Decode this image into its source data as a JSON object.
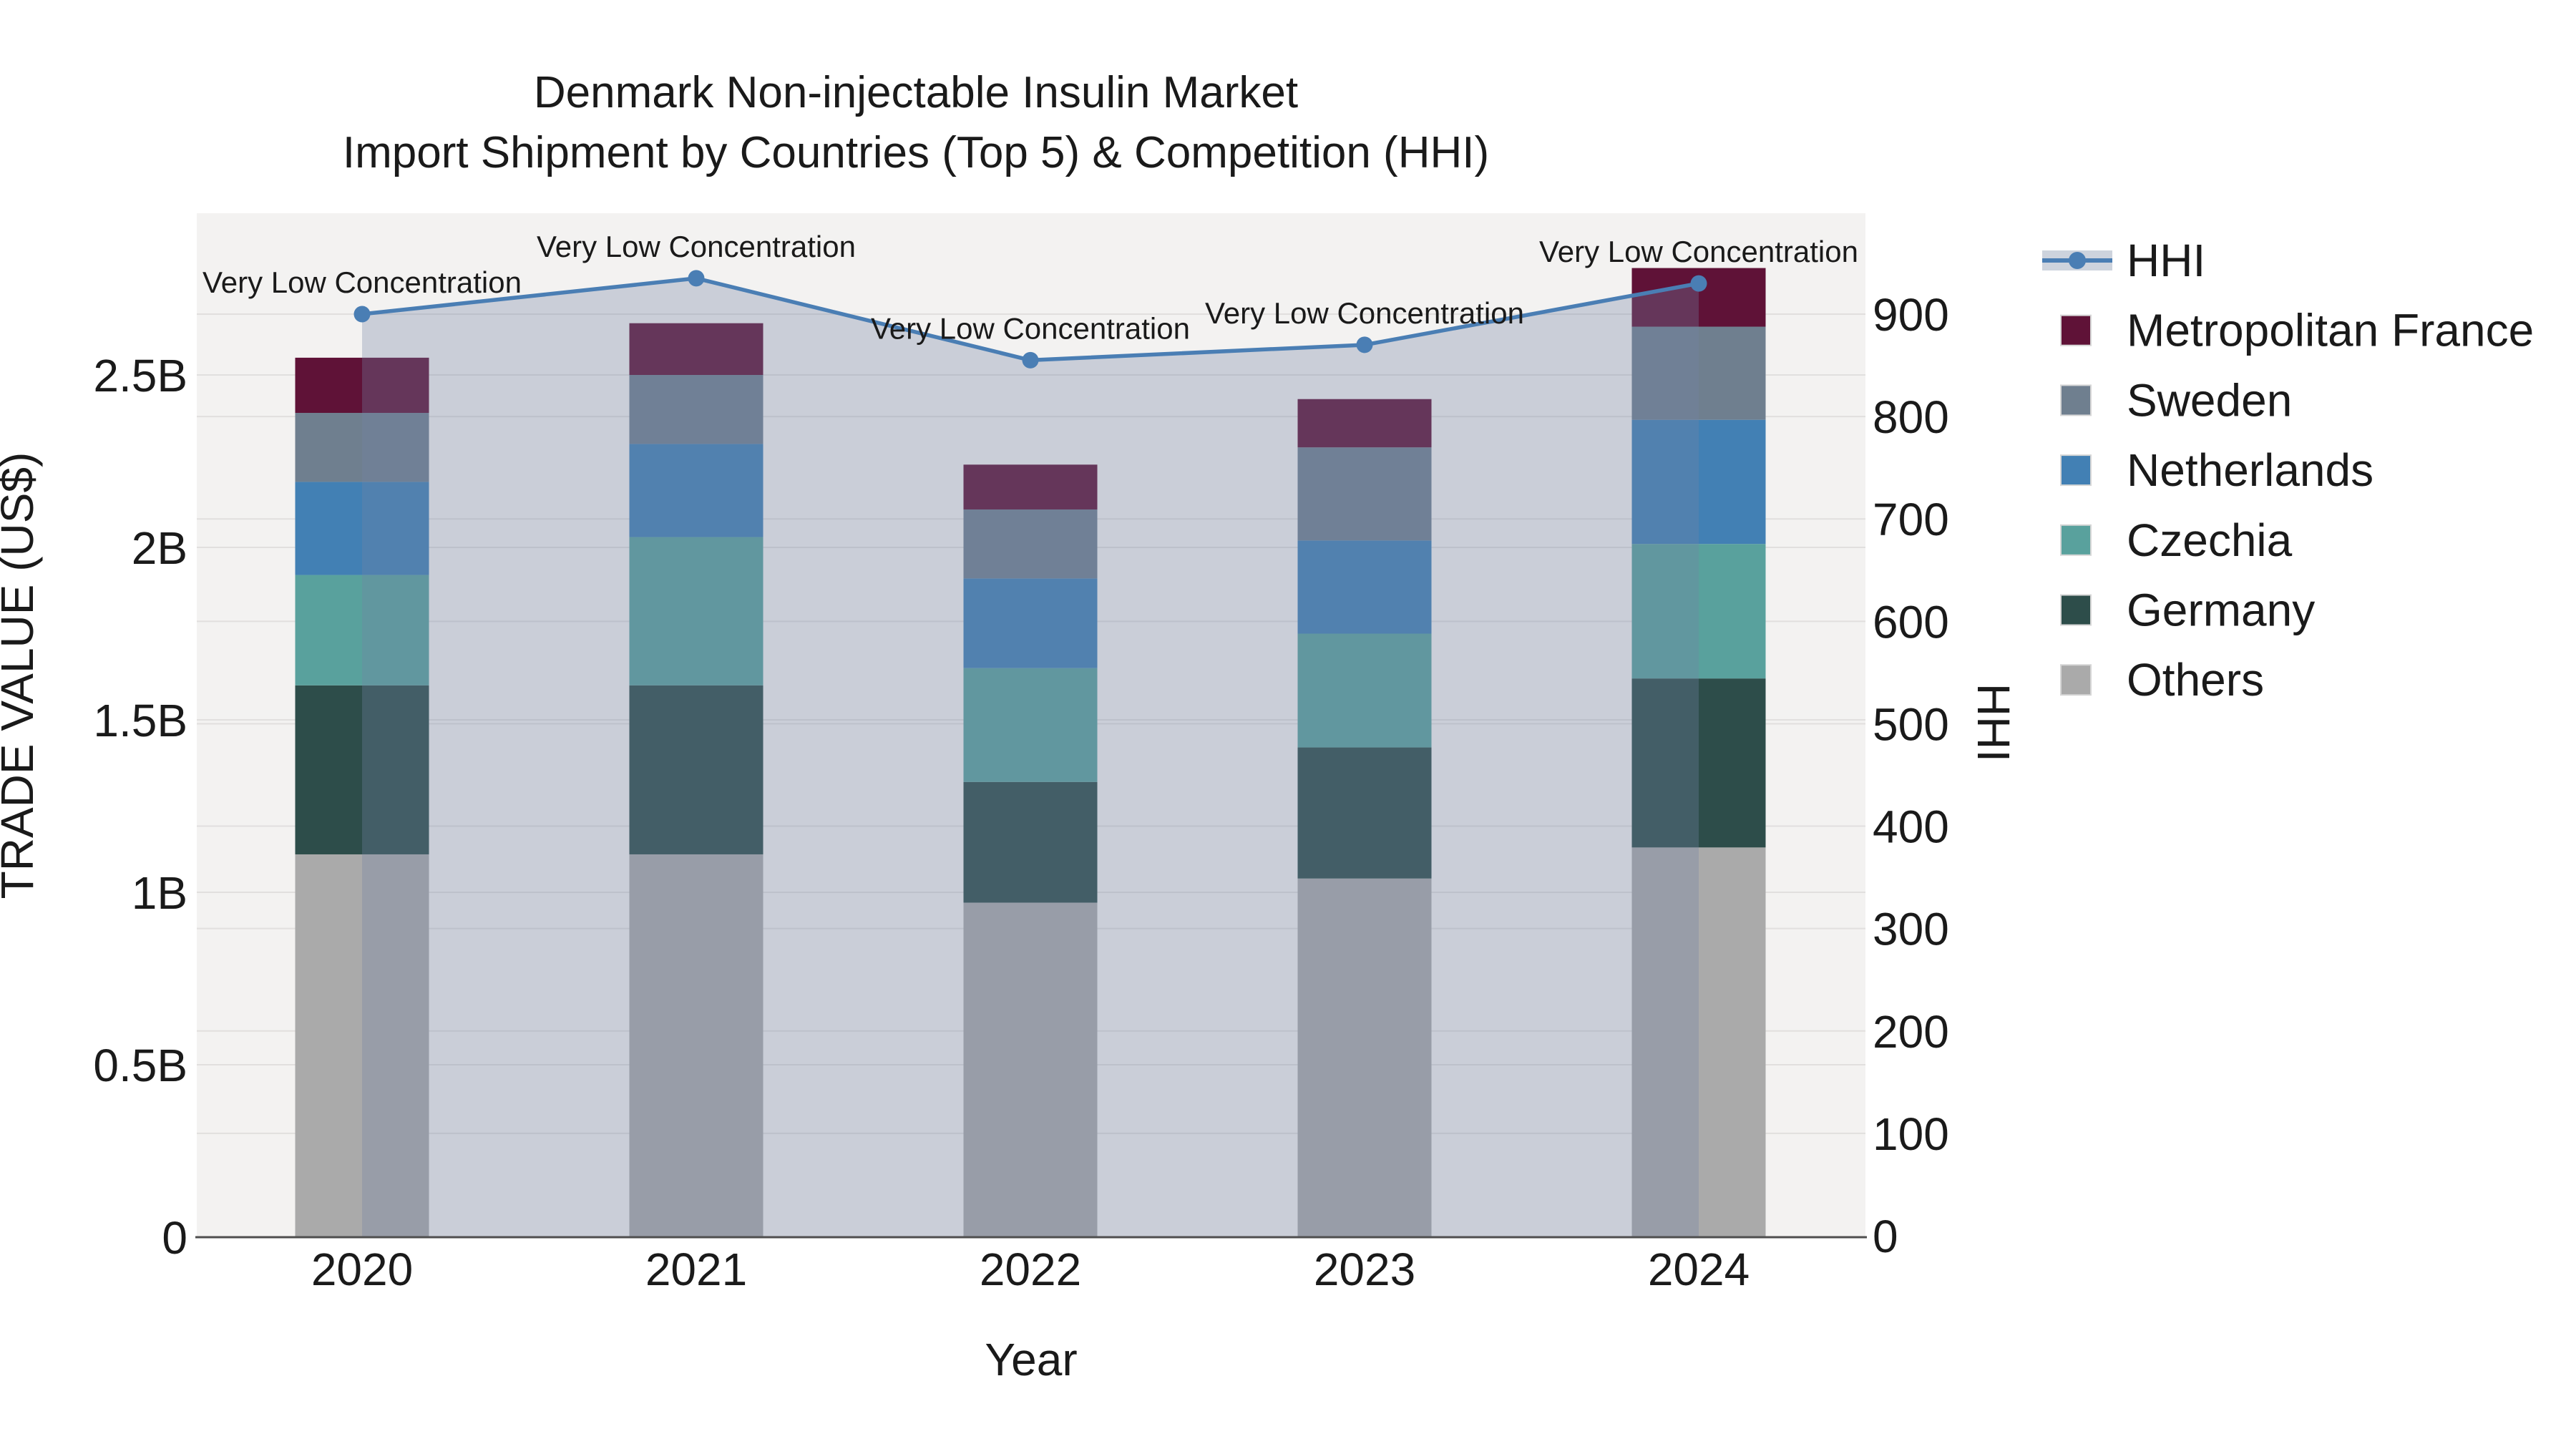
{
  "title": {
    "line1": "Denmark Non-injectable Insulin Market",
    "line2": "Import Shipment by Countries (Top 5) & Competition (HHI)"
  },
  "axes": {
    "x": {
      "label": "Year",
      "categories": [
        "2020",
        "2021",
        "2022",
        "2023",
        "2024"
      ]
    },
    "y_left": {
      "label": "TRADE VALUE (US$)"
    },
    "y_right": {
      "label": "HHI"
    }
  },
  "legend": {
    "items": [
      {
        "label": "HHI",
        "type": "line",
        "color": "#4a7eb4",
        "band_color": "#cdd3dd"
      },
      {
        "label": "Metropolitan France",
        "type": "swatch",
        "color": "#5f1237"
      },
      {
        "label": "Sweden",
        "type": "swatch",
        "color": "#6f7f8f"
      },
      {
        "label": "Netherlands",
        "type": "swatch",
        "color": "#4280b4"
      },
      {
        "label": "Czechia",
        "type": "swatch",
        "color": "#59a19d"
      },
      {
        "label": "Germany",
        "type": "swatch",
        "color": "#2d4d4a"
      },
      {
        "label": "Others",
        "type": "swatch",
        "color": "#aaaaaa"
      }
    ]
  },
  "chart_data": {
    "type": "bar",
    "subtype": "stacked-bars-with-line",
    "categories": [
      "2020",
      "2021",
      "2022",
      "2023",
      "2024"
    ],
    "bar_value_unit": "billions US$",
    "series": [
      {
        "name": "Others",
        "color": "#aaaaaa",
        "values": [
          1.11,
          1.11,
          0.97,
          1.04,
          1.13
        ]
      },
      {
        "name": "Germany",
        "color": "#2d4d4a",
        "values": [
          0.49,
          0.49,
          0.35,
          0.38,
          0.49
        ]
      },
      {
        "name": "Czechia",
        "color": "#59a19d",
        "values": [
          0.32,
          0.43,
          0.33,
          0.33,
          0.39
        ]
      },
      {
        "name": "Netherlands",
        "color": "#4280b4",
        "values": [
          0.27,
          0.27,
          0.26,
          0.27,
          0.36
        ]
      },
      {
        "name": "Sweden",
        "color": "#6f7f8f",
        "values": [
          0.2,
          0.2,
          0.2,
          0.27,
          0.27
        ]
      },
      {
        "name": "Metropolitan France",
        "color": "#5f1237",
        "values": [
          0.16,
          0.15,
          0.13,
          0.14,
          0.17
        ]
      }
    ],
    "line_series": {
      "name": "HHI",
      "color": "#4a7eb4",
      "area_fill": "rgba(116,131,166,0.32)",
      "values": [
        900,
        935,
        855,
        870,
        930
      ]
    },
    "annotations": [
      "Very Low Concentration",
      "Very Low Concentration",
      "Very Low Concentration",
      "Very Low Concentration",
      "Very Low Concentration"
    ],
    "y_left_ticks": [
      {
        "v": 0.0,
        "label": "0"
      },
      {
        "v": 0.5,
        "label": "0.5B"
      },
      {
        "v": 1.0,
        "label": "1B"
      },
      {
        "v": 1.5,
        "label": "1.5B"
      },
      {
        "v": 2.0,
        "label": "2B"
      },
      {
        "v": 2.5,
        "label": "2.5B"
      }
    ],
    "y_right_ticks": [
      0,
      100,
      200,
      300,
      400,
      500,
      600,
      700,
      800,
      900
    ],
    "ylim_left": [
      0,
      2.97
    ],
    "ylim_right": [
      0,
      1000
    ],
    "grid": true,
    "legend_position": "right",
    "plot_bg": "#f3f2f1",
    "grid_color": "#e1dfde",
    "baseline_color": "#4f4f4f"
  }
}
